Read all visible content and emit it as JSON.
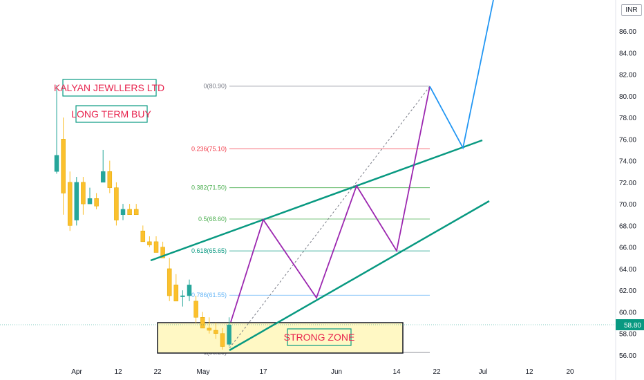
{
  "currency": "INR",
  "chart_data": {
    "type": "candlestick",
    "symbol_label": "KALYAN JEWLLERS LTD",
    "idea_label": "LONG TERM BUY",
    "zone_label": "STRONG ZONE",
    "y_range": [
      55,
      88
    ],
    "y_ticks": [
      "56.00",
      "58.00",
      "60.00",
      "62.00",
      "64.00",
      "66.00",
      "68.00",
      "70.00",
      "72.00",
      "74.00",
      "76.00",
      "78.00",
      "80.00",
      "82.00",
      "84.00",
      "86.00"
    ],
    "x_ticks": [
      "Apr",
      "12",
      "22",
      "May",
      "17",
      "Jun",
      "14",
      "22",
      "Jul",
      "12",
      "20"
    ],
    "last_price": "58.80",
    "colors": {
      "up": "#26a69a",
      "down": "#fbc02d",
      "channel": "#089981",
      "projection": "#9c27b0",
      "final_leg": "#2196f3"
    },
    "candles": [
      {
        "o": 73.0,
        "h": 81.0,
        "l": 72.8,
        "c": 74.5
      },
      {
        "o": 76.0,
        "h": 78.0,
        "l": 69.0,
        "c": 71.0
      },
      {
        "o": 72.0,
        "h": 73.0,
        "l": 67.5,
        "c": 68.0
      },
      {
        "o": 68.5,
        "h": 72.5,
        "l": 68.0,
        "c": 72.0
      },
      {
        "o": 72.0,
        "h": 72.5,
        "l": 69.0,
        "c": 70.0
      },
      {
        "o": 70.0,
        "h": 71.5,
        "l": 70.0,
        "c": 70.5
      },
      {
        "o": 70.5,
        "h": 71.0,
        "l": 69.5,
        "c": 69.8
      },
      {
        "o": 72.0,
        "h": 75.0,
        "l": 72.0,
        "c": 73.0
      },
      {
        "o": 73.0,
        "h": 74.0,
        "l": 71.0,
        "c": 71.5
      },
      {
        "o": 71.5,
        "h": 72.0,
        "l": 68.0,
        "c": 68.5
      },
      {
        "o": 69.0,
        "h": 70.0,
        "l": 68.5,
        "c": 69.5
      },
      {
        "o": 69.5,
        "h": 70.0,
        "l": 69.0,
        "c": 69.0
      },
      {
        "o": 69.5,
        "h": 70.0,
        "l": 69.0,
        "c": 69.0
      },
      {
        "o": 67.5,
        "h": 68.0,
        "l": 66.5,
        "c": 66.5
      },
      {
        "o": 66.5,
        "h": 67.0,
        "l": 66.0,
        "c": 66.2
      },
      {
        "o": 66.5,
        "h": 67.0,
        "l": 65.5,
        "c": 65.5
      },
      {
        "o": 66.0,
        "h": 66.5,
        "l": 65.0,
        "c": 65.0
      },
      {
        "o": 64.0,
        "h": 65.0,
        "l": 61.0,
        "c": 61.5
      },
      {
        "o": 62.5,
        "h": 63.5,
        "l": 61.0,
        "c": 61.0
      },
      {
        "o": 61.5,
        "h": 62.0,
        "l": 60.5,
        "c": 61.5
      },
      {
        "o": 61.5,
        "h": 63.0,
        "l": 61.0,
        "c": 62.5
      },
      {
        "o": 61.0,
        "h": 61.5,
        "l": 59.0,
        "c": 59.5
      },
      {
        "o": 59.5,
        "h": 60.0,
        "l": 58.5,
        "c": 58.5
      },
      {
        "o": 58.5,
        "h": 59.5,
        "l": 58.0,
        "c": 58.3
      },
      {
        "o": 58.3,
        "h": 59.0,
        "l": 57.5,
        "c": 58.0
      },
      {
        "o": 58.0,
        "h": 58.5,
        "l": 56.5,
        "c": 56.8
      },
      {
        "o": 57.0,
        "h": 59.5,
        "l": 56.8,
        "c": 58.8
      }
    ],
    "fib_levels": [
      {
        "label": "0(80.90)",
        "price": 80.9,
        "color": "#787b86"
      },
      {
        "label": "0.236(75.10)",
        "price": 75.1,
        "color": "#f23645"
      },
      {
        "label": "0.382(71.50)",
        "price": 71.5,
        "color": "#4caf50"
      },
      {
        "label": "0.5(68.60)",
        "price": 68.6,
        "color": "#4caf50"
      },
      {
        "label": "0.618(65.65)",
        "price": 65.65,
        "color": "#089981"
      },
      {
        "label": "0.786(61.55)",
        "price": 61.55,
        "color": "#64b5f6"
      },
      {
        "label": "1(56.25)",
        "price": 56.25,
        "color": "#787b86"
      }
    ]
  }
}
